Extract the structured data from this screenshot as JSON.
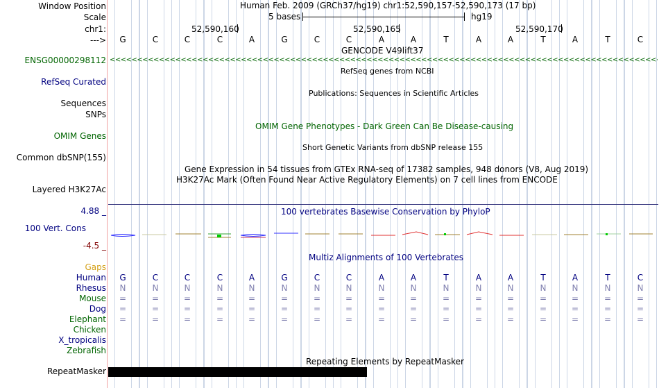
{
  "header": {
    "window_position_label": "Window Position",
    "scale_label": "Scale",
    "chr_label": "chr1:",
    "strand_label": "--->",
    "assembly_position": "Human Feb. 2009 (GRCh37/hg19)   chr1:52,590,157-52,590,173 (17 bp)",
    "scale_value": "5 bases",
    "scale_assembly": "hg19",
    "coord_ticks": [
      "52,590,160",
      "52,590,165",
      "52,590,170"
    ]
  },
  "sequence": [
    "G",
    "C",
    "C",
    "C",
    "A",
    "G",
    "C",
    "C",
    "A",
    "A",
    "T",
    "A",
    "A",
    "T",
    "A",
    "T",
    "C"
  ],
  "tracks": {
    "gencode": {
      "title": "GENCODE V49lift37",
      "gene_label": "ENSG00000298112",
      "strand_glyphs": "<<<<<<<<<<<<<<<<<<<<<<<<<<<<<<<<<<<<<<<<<<<<<<<<<<<<<<<<<<<<<<<<<<<<<<<<<<<<<<<<<<<<<<<<<<<<<<<<<<<<<<<<<<<<<<<<<<<<<<<<<<<<<<<<<<<<<<<<<<<<<"
    },
    "refseq": {
      "title": "RefSeq genes from NCBI",
      "label": "RefSeq Curated"
    },
    "publications": {
      "title": "Publications: Sequences in Scientific Articles",
      "label_line1": "Sequences",
      "label_line2": "SNPs"
    },
    "omim": {
      "title": "OMIM Gene Phenotypes - Dark Green Can Be Disease-causing",
      "label": "OMIM Genes"
    },
    "dbsnp": {
      "title": "Short Genetic Variants from dbSNP release 155",
      "label": "Common dbSNP(155)"
    },
    "gtex": {
      "title": "Gene Expression in 54 tissues from GTEx RNA-seq of 17382 samples, 948 donors (V8, Aug 2019)"
    },
    "h3k27ac": {
      "title": "H3K27Ac Mark (Often Found Near Active Regulatory Elements) on 7 cell lines from ENCODE",
      "label": "Layered H3K27Ac"
    },
    "phylop": {
      "title": "100 vertebrates Basewise Conservation by PhyloP",
      "label": "100 Vert. Cons",
      "max_label": "4.88 _",
      "min_label": "-4.5 _"
    },
    "multiz": {
      "title": "Multiz Alignments of 100 Vertebrates",
      "gaps_label": "Gaps",
      "species": [
        {
          "name": "Human",
          "row": [
            "G",
            "C",
            "C",
            "C",
            "A",
            "G",
            "C",
            "C",
            "A",
            "A",
            "T",
            "A",
            "A",
            "T",
            "A",
            "T",
            "C"
          ]
        },
        {
          "name": "Rhesus",
          "row": [
            "N",
            "N",
            "N",
            "N",
            "N",
            "N",
            "N",
            "N",
            "N",
            "N",
            "N",
            "N",
            "N",
            "N",
            "N",
            "N",
            "N"
          ]
        },
        {
          "name": "Mouse",
          "row": [
            "=",
            "=",
            "=",
            "=",
            "=",
            "=",
            "=",
            "=",
            "=",
            "=",
            "=",
            "=",
            "=",
            "=",
            "=",
            "=",
            "="
          ]
        },
        {
          "name": "Dog",
          "row": [
            "=",
            "=",
            "=",
            "=",
            "=",
            "=",
            "=",
            "=",
            "=",
            "=",
            "=",
            "=",
            "=",
            "=",
            "=",
            "=",
            "="
          ]
        },
        {
          "name": "Elephant",
          "row": [
            "=",
            "=",
            "=",
            "=",
            "=",
            "=",
            "=",
            "=",
            "=",
            "=",
            "=",
            "=",
            "=",
            "=",
            "=",
            "=",
            "="
          ]
        },
        {
          "name": "Chicken",
          "row": []
        },
        {
          "name": "X_tropicalis",
          "row": []
        },
        {
          "name": "Zebrafish",
          "row": []
        }
      ]
    },
    "repeatmasker": {
      "title": "Repeating Elements by RepeatMasker",
      "label": "RepeatMasker"
    }
  },
  "colors": {
    "navy": "#000080",
    "green": "#006400",
    "gaps": "#d4a017",
    "divider": "#f0a0a0"
  }
}
